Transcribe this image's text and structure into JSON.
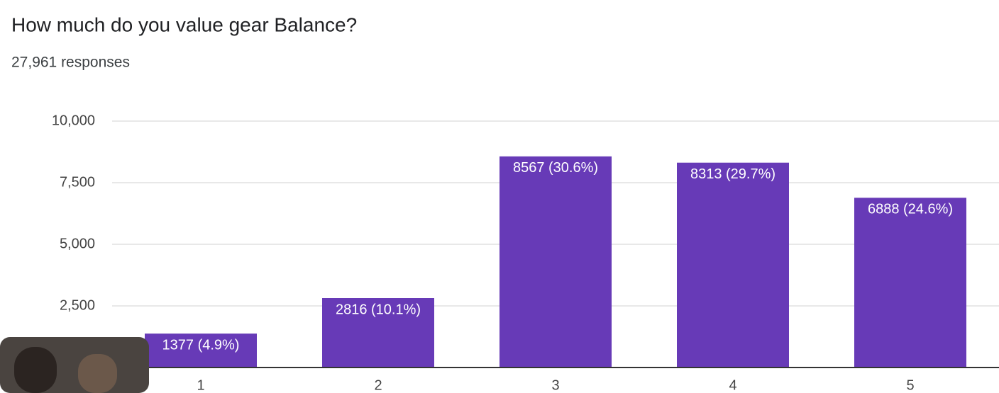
{
  "chart_data": {
    "type": "bar",
    "title": "How much do you value gear Balance?",
    "subtitle": "27,961 responses",
    "categories": [
      "1",
      "2",
      "3",
      "4",
      "5"
    ],
    "values": [
      1377,
      2816,
      8567,
      8313,
      6888
    ],
    "value_labels": [
      "1377 (4.9%)",
      "2816 (10.1%)",
      "8567 (30.6%)",
      "8313 (29.7%)",
      "6888 (24.6%)"
    ],
    "color": "#673ab7",
    "ylim": [
      0,
      10000
    ],
    "yticks": [
      {
        "value": 2500,
        "label": "2,500"
      },
      {
        "value": 5000,
        "label": "5,000"
      },
      {
        "value": 7500,
        "label": "7,500"
      },
      {
        "value": 10000,
        "label": "10,000"
      }
    ],
    "grid": true
  }
}
